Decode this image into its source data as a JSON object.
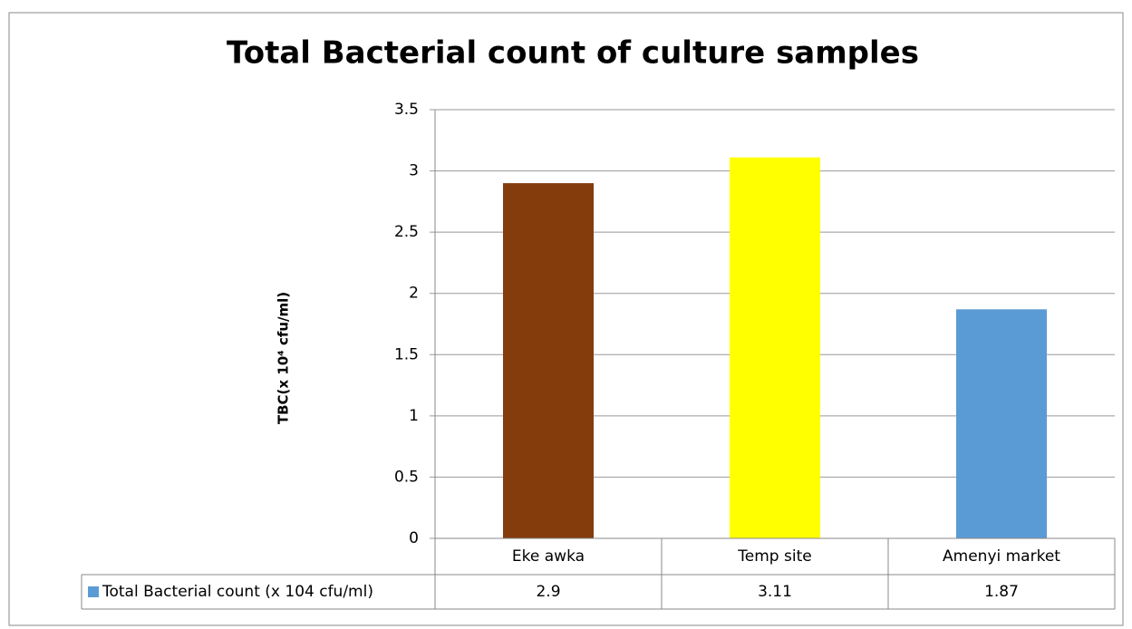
{
  "chart_data": {
    "type": "bar",
    "title": "Total Bacterial count of culture samples",
    "y_label": "TBC(x 10⁴ cfu/ml)",
    "categories": [
      "Eke awka",
      "Temp site",
      "Amenyi market"
    ],
    "series": [
      {
        "name": "Total Bacterial count (x 104 cfu/ml)",
        "color": "#5b9bd5",
        "values": [
          2.9,
          3.11,
          1.87
        ]
      }
    ],
    "bar_colors": [
      "#843c0c",
      "#ffff00",
      "#5b9bd5"
    ],
    "ylim": [
      0,
      3.5
    ],
    "yticks": [
      0,
      0.5,
      1,
      1.5,
      2,
      2.5,
      3,
      3.5
    ],
    "grid": true,
    "data_table": true
  }
}
